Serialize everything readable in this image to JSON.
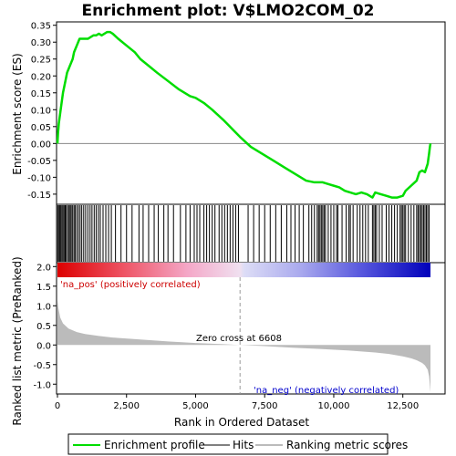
{
  "chart_data": {
    "type": "line",
    "title": "Enrichment plot: V$LMO2COM_02",
    "xlabel": "Rank in Ordered Dataset",
    "n_genes": 13500,
    "x_ticks": [
      0,
      2500,
      5000,
      7500,
      10000,
      12500
    ],
    "x_tick_labels": [
      "0",
      "2,500",
      "5,000",
      "7,500",
      "10,000",
      "12,500"
    ],
    "enrichment_panel": {
      "ylabel": "Enrichment score (ES)",
      "ylim": [
        -0.18,
        0.36
      ],
      "y_ticks": [
        -0.15,
        -0.1,
        -0.05,
        0.0,
        0.05,
        0.1,
        0.15,
        0.2,
        0.25,
        0.3,
        0.35
      ],
      "y_tick_labels": [
        "-0.15",
        "-0.10",
        "-0.05",
        "0.00",
        "0.05",
        "0.10",
        "0.15",
        "0.20",
        "0.25",
        "0.30",
        "0.35"
      ],
      "color": "#00dd00",
      "x": [
        0,
        20,
        50,
        100,
        150,
        200,
        250,
        300,
        350,
        400,
        450,
        500,
        550,
        600,
        650,
        700,
        750,
        800,
        900,
        1000,
        1100,
        1200,
        1300,
        1400,
        1500,
        1600,
        1700,
        1800,
        1900,
        2000,
        2200,
        2500,
        2800,
        3000,
        3300,
        3600,
        4000,
        4400,
        4800,
        5000,
        5300,
        5600,
        6000,
        6300,
        6600,
        7000,
        7400,
        7800,
        8200,
        8600,
        9000,
        9300,
        9600,
        9800,
        10000,
        10200,
        10400,
        10600,
        10800,
        11000,
        11200,
        11400,
        11500,
        11700,
        11900,
        12100,
        12300,
        12500,
        12600,
        12800,
        13000,
        13100,
        13200,
        13300,
        13400,
        13450,
        13480,
        13500
      ],
      "es": [
        0.0,
        0.03,
        0.06,
        0.09,
        0.12,
        0.15,
        0.17,
        0.19,
        0.21,
        0.22,
        0.23,
        0.24,
        0.25,
        0.27,
        0.28,
        0.29,
        0.3,
        0.31,
        0.31,
        0.31,
        0.31,
        0.315,
        0.32,
        0.32,
        0.325,
        0.32,
        0.325,
        0.33,
        0.33,
        0.325,
        0.31,
        0.29,
        0.27,
        0.25,
        0.23,
        0.21,
        0.185,
        0.16,
        0.14,
        0.135,
        0.12,
        0.1,
        0.07,
        0.045,
        0.02,
        -0.01,
        -0.03,
        -0.05,
        -0.07,
        -0.09,
        -0.11,
        -0.115,
        -0.115,
        -0.12,
        -0.125,
        -0.13,
        -0.14,
        -0.145,
        -0.15,
        -0.145,
        -0.15,
        -0.16,
        -0.145,
        -0.15,
        -0.155,
        -0.16,
        -0.16,
        -0.155,
        -0.14,
        -0.125,
        -0.11,
        -0.085,
        -0.08,
        -0.085,
        -0.06,
        -0.03,
        -0.01,
        0.0
      ]
    },
    "hits": [
      10,
      40,
      80,
      120,
      160,
      200,
      240,
      280,
      320,
      370,
      420,
      460,
      500,
      550,
      600,
      640,
      700,
      760,
      820,
      880,
      950,
      1020,
      1100,
      1180,
      1250,
      1330,
      1400,
      1480,
      1550,
      1650,
      1750,
      1850,
      1950,
      2100,
      2300,
      2500,
      2700,
      2950,
      3100,
      3300,
      3500,
      3650,
      3850,
      4000,
      4200,
      4450,
      4650,
      4800,
      4950,
      5050,
      5150,
      5300,
      5400,
      5500,
      5600,
      5700,
      5850,
      5950,
      6050,
      6150,
      6250,
      6350,
      6450,
      6550,
      6900,
      7100,
      7300,
      7500,
      7700,
      7900,
      8100,
      8300,
      8450,
      8600,
      8750,
      8900,
      9100,
      9200,
      9300,
      9400,
      9450,
      9500,
      9550,
      9600,
      9650,
      9700,
      9800,
      9900,
      10000,
      10100,
      10150,
      10300,
      10450,
      10550,
      10600,
      10700,
      10850,
      10950,
      11050,
      11150,
      11250,
      11400,
      11450,
      11500,
      11550,
      11650,
      11750,
      11900,
      12000,
      12100,
      12200,
      12300,
      12400,
      12450,
      12500,
      12550,
      12600,
      12700,
      12800,
      12900,
      13000,
      13050,
      13100,
      13150,
      13200,
      13250,
      13300,
      13350,
      13400,
      13450
    ],
    "ranking_panel": {
      "ylabel": "Ranked list metric (PreRanked)",
      "ylim": [
        -1.25,
        2.1
      ],
      "y_ticks": [
        -1.0,
        -0.5,
        0.0,
        0.5,
        1.0,
        1.5,
        2.0
      ],
      "y_tick_labels": [
        "-1.0",
        "-0.5",
        "0.0",
        "0.5",
        "1.0",
        "1.5",
        "2.0"
      ],
      "x": [
        0,
        30,
        100,
        200,
        400,
        700,
        1000,
        1500,
        2000,
        3000,
        4000,
        5000,
        6000,
        6608,
        7500,
        8500,
        9500,
        10500,
        11500,
        12000,
        12500,
        12800,
        13000,
        13200,
        13300,
        13400,
        13450,
        13500
      ],
      "metric": [
        1.15,
        0.95,
        0.7,
        0.55,
        0.42,
        0.33,
        0.28,
        0.23,
        0.19,
        0.14,
        0.09,
        0.05,
        0.02,
        0.0,
        -0.03,
        -0.07,
        -0.1,
        -0.14,
        -0.19,
        -0.23,
        -0.29,
        -0.34,
        -0.39,
        -0.46,
        -0.52,
        -0.63,
        -0.8,
        -1.2
      ],
      "fill_color": "#bbbbbb",
      "zero_cross": 6608,
      "zero_cross_label": "Zero cross at 6608",
      "pos_label": "'na_pos' (positively correlated)",
      "neg_label": "'na_neg' (negatively correlated)",
      "pos_color": "#cc0000",
      "neg_color": "#0000cc"
    },
    "legend": {
      "position": "bottom",
      "items": [
        {
          "label": "Enrichment profile",
          "color": "#00dd00"
        },
        {
          "label": "Hits",
          "color": "#000000"
        },
        {
          "label": "Ranking metric scores",
          "color": "#bbbbbb"
        }
      ]
    }
  }
}
